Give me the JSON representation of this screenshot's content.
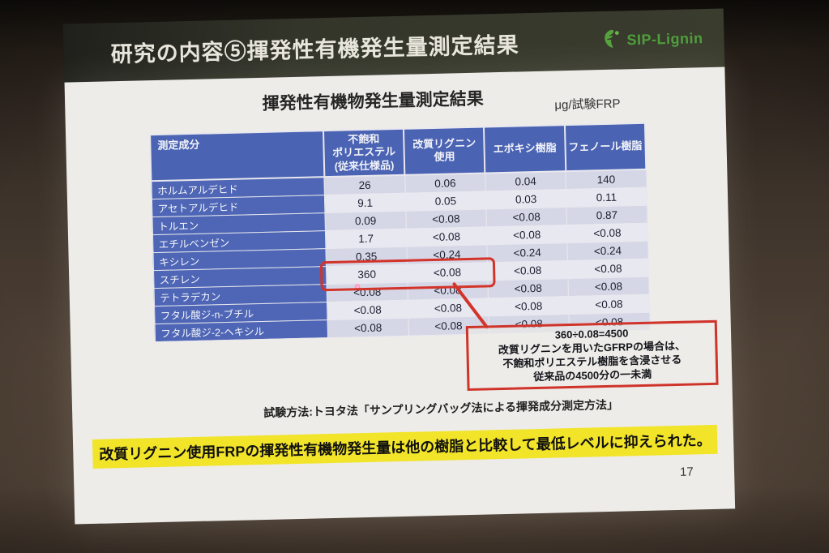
{
  "slide": {
    "header": {
      "title": "研究の内容⑤揮発性有機発生量測定結果",
      "logo_text": "SIP-Lignin"
    },
    "table_title": "揮発性有機物発生量測定結果",
    "unit_label": "μg/試験FRP",
    "table": {
      "columns": [
        "測定成分",
        "不飽和\nポリエステル\n(従来仕様品)",
        "改質リグニン\n使用",
        "エポキシ樹脂",
        "フェノール樹脂"
      ],
      "rows": [
        {
          "label": "ホルムアルデヒド",
          "values": [
            "26",
            "0.06",
            "0.04",
            "140"
          ]
        },
        {
          "label": "アセトアルデヒド",
          "values": [
            "9.1",
            "0.05",
            "0.03",
            "0.11"
          ]
        },
        {
          "label": "トルエン",
          "values": [
            "0.09",
            "<0.08",
            "<0.08",
            "0.87"
          ]
        },
        {
          "label": "エチルベンゼン",
          "values": [
            "1.7",
            "<0.08",
            "<0.08",
            "<0.08"
          ]
        },
        {
          "label": "キシレン",
          "values": [
            "0.35",
            "<0.24",
            "<0.24",
            "<0.24"
          ]
        },
        {
          "label": "スチレン",
          "values": [
            "360",
            "<0.08",
            "<0.08",
            "<0.08"
          ]
        },
        {
          "label": "テトラデカン",
          "values": [
            "<0.08",
            "<0.08",
            "<0.08",
            "<0.08"
          ]
        },
        {
          "label": "フタル酸ジ-n-ブチル",
          "values": [
            "<0.08",
            "<0.08",
            "<0.08",
            "<0.08"
          ]
        },
        {
          "label": "フタル酸ジ-2-ヘキシル",
          "values": [
            "<0.08",
            "<0.08",
            "<0.08",
            "<0.08"
          ]
        }
      ],
      "highlight_row": 5,
      "highlight_value_cols": [
        0,
        1
      ]
    },
    "annotation_lines": [
      "360÷0.08=4500",
      "改質リグニンを用いたGFRPの場合は、",
      "不飽和ポリエステル樹脂を含浸させる",
      "従来品の4500分の一未満"
    ],
    "test_method": "試験方法:トヨタ法「サンプリングバッグ法による揮発成分測定方法」",
    "conclusion": "改質リグニン使用FRPの揮発性有機物発生量は他の樹脂と比較して最低レベルに抑えられた。",
    "page_number": "17"
  },
  "colors": {
    "header_blue": "#4a63b3",
    "label_blue": "#4e66b5",
    "row_alt_dark": "#d6d7e6",
    "row_alt_light": "#e8e8f1",
    "highlight_red": "#d2342a",
    "conclusion_yellow": "#f2e428",
    "logo_green": "#4f9e3d"
  }
}
